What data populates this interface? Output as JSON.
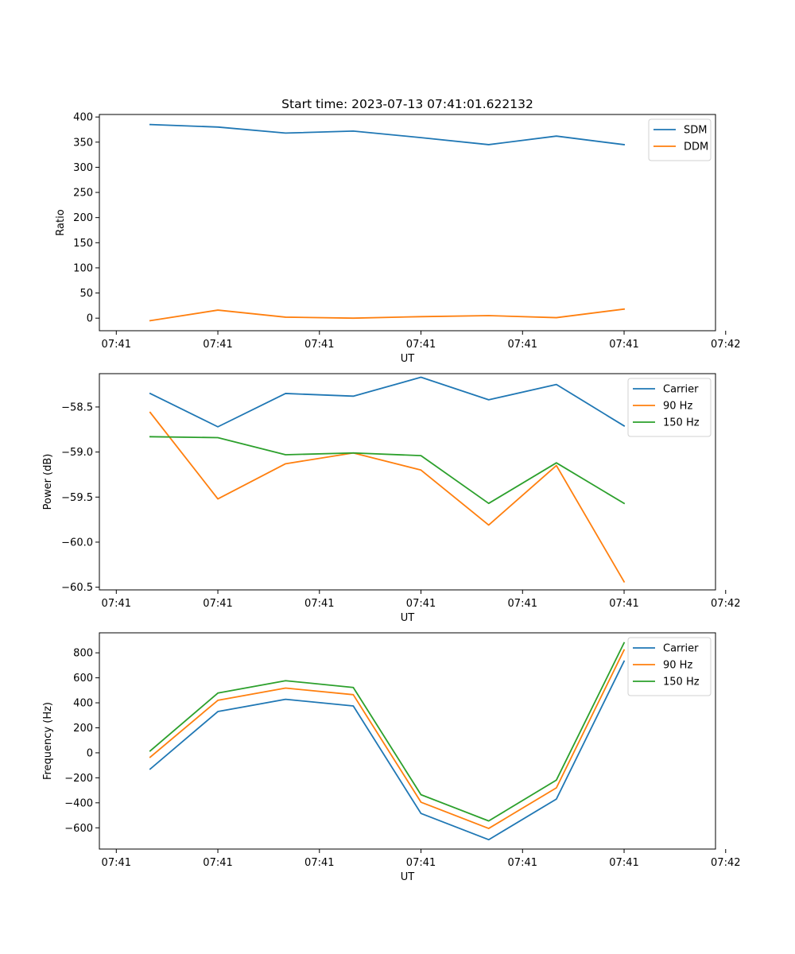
{
  "figure_title": "Start time: 2023-07-13 07:41:01.622132",
  "colors": {
    "blue": "#1f77b4",
    "orange": "#ff7f0e",
    "green": "#2ca02c"
  },
  "chart_data": [
    {
      "type": "line",
      "title": "Start time: 2023-07-13 07:41:01.622132",
      "xlabel": "UT",
      "ylabel": "Ratio",
      "x": [
        1,
        2,
        3,
        4,
        5,
        6,
        7,
        8
      ],
      "xlim": [
        0.25,
        9.35
      ],
      "xticks": [
        0.5,
        2,
        3.5,
        5,
        6.5,
        8,
        9.5
      ],
      "xtick_labels": [
        "07:41",
        "07:41",
        "07:41",
        "07:41",
        "07:41",
        "07:41",
        "07:42"
      ],
      "ylim": [
        -25,
        405
      ],
      "yticks": [
        0,
        50,
        100,
        150,
        200,
        250,
        300,
        350,
        400
      ],
      "ytick_labels": [
        "0",
        "50",
        "100",
        "150",
        "200",
        "250",
        "300",
        "350",
        "400"
      ],
      "legend": "top-right",
      "series": [
        {
          "name": "SDM",
          "color": "#1f77b4",
          "values": [
            385,
            380,
            368,
            372,
            359,
            345,
            362,
            345
          ]
        },
        {
          "name": "DDM",
          "color": "#ff7f0e",
          "values": [
            -5,
            16,
            2,
            0,
            3,
            5,
            1,
            18
          ]
        }
      ]
    },
    {
      "type": "line",
      "xlabel": "UT",
      "ylabel": "Power (dB)",
      "x": [
        1,
        2,
        3,
        4,
        5,
        6,
        7,
        8
      ],
      "xlim": [
        0.25,
        9.35
      ],
      "xticks": [
        0.5,
        2,
        3.5,
        5,
        6.5,
        8,
        9.5
      ],
      "xtick_labels": [
        "07:41",
        "07:41",
        "07:41",
        "07:41",
        "07:41",
        "07:41",
        "07:42"
      ],
      "ylim": [
        -60.53,
        -58.13
      ],
      "yticks": [
        -60.5,
        -60.0,
        -59.5,
        -59.0,
        -58.5
      ],
      "ytick_labels": [
        "−60.5",
        "−60.0",
        "−59.5",
        "−59.0",
        "−58.5"
      ],
      "legend": "top-right",
      "series": [
        {
          "name": "Carrier",
          "color": "#1f77b4",
          "values": [
            -58.35,
            -58.72,
            -58.35,
            -58.38,
            -58.17,
            -58.42,
            -58.25,
            -58.71
          ]
        },
        {
          "name": "90 Hz",
          "color": "#ff7f0e",
          "values": [
            -58.56,
            -59.52,
            -59.13,
            -59.01,
            -59.2,
            -59.81,
            -59.15,
            -60.44
          ]
        },
        {
          "name": "150 Hz",
          "color": "#2ca02c",
          "values": [
            -58.83,
            -58.84,
            -59.03,
            -59.01,
            -59.04,
            -59.57,
            -59.12,
            -59.57
          ]
        }
      ]
    },
    {
      "type": "line",
      "xlabel": "UT",
      "ylabel": "Frequency (Hz)",
      "x": [
        1,
        2,
        3,
        4,
        5,
        6,
        7,
        8
      ],
      "xlim": [
        0.25,
        9.35
      ],
      "xticks": [
        0.5,
        2,
        3.5,
        5,
        6.5,
        8,
        9.5
      ],
      "xtick_labels": [
        "07:41",
        "07:41",
        "07:41",
        "07:41",
        "07:41",
        "07:41",
        "07:42"
      ],
      "ylim": [
        -770,
        960
      ],
      "yticks": [
        -600,
        -400,
        -200,
        0,
        200,
        400,
        600,
        800
      ],
      "ytick_labels": [
        "−600",
        "−400",
        "−200",
        "0",
        "200",
        "400",
        "600",
        "800"
      ],
      "legend": "top-right",
      "series": [
        {
          "name": "Carrier",
          "color": "#1f77b4",
          "values": [
            -130,
            330,
            428,
            375,
            -485,
            -695,
            -370,
            733
          ]
        },
        {
          "name": "90 Hz",
          "color": "#ff7f0e",
          "values": [
            -35,
            420,
            518,
            465,
            -395,
            -605,
            -280,
            823
          ]
        },
        {
          "name": "150 Hz",
          "color": "#2ca02c",
          "values": [
            15,
            478,
            577,
            523,
            -335,
            -545,
            -218,
            880
          ]
        }
      ]
    }
  ]
}
